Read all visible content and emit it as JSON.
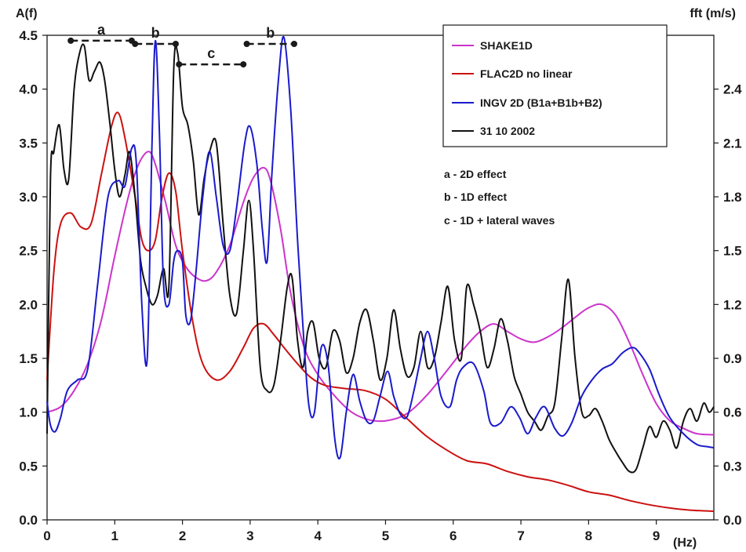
{
  "chart_data": {
    "type": "line",
    "xlabel": "(Hz)",
    "ylabel_left": "A(f)",
    "ylabel_right": "fft (m/s)",
    "xlim": [
      0,
      9.85
    ],
    "ylim_left": [
      0,
      4.5
    ],
    "ylim_right": [
      0,
      2.7
    ],
    "x_ticks": [
      "0",
      "1",
      "2",
      "3",
      "4",
      "5",
      "6",
      "7",
      "8",
      "9"
    ],
    "y_left_ticks": [
      "0.0",
      "0.5",
      "1.0",
      "1.5",
      "2.0",
      "2.5",
      "3.0",
      "3.5",
      "4.0",
      "4.5"
    ],
    "y_right_ticks": [
      "0.0",
      "0.3",
      "0.6",
      "0.9",
      "1.2",
      "1.5",
      "1.8",
      "2.1",
      "2.4"
    ],
    "legend_position": "top-right",
    "series": [
      {
        "name": "SHAKE1D",
        "color": "#cc33cc",
        "axis": "left",
        "x": [
          0,
          0.2,
          0.4,
          0.6,
          0.8,
          1.0,
          1.2,
          1.35,
          1.5,
          1.6,
          1.75,
          1.9,
          2.05,
          2.2,
          2.35,
          2.5,
          2.7,
          2.9,
          3.05,
          3.2,
          3.3,
          3.45,
          3.6,
          3.8,
          4.0,
          4.25,
          4.5,
          4.75,
          5.0,
          5.3,
          5.6,
          5.9,
          6.2,
          6.4,
          6.6,
          6.8,
          7.0,
          7.2,
          7.4,
          7.6,
          7.8,
          8.0,
          8.2,
          8.4,
          8.6,
          8.8,
          9.0,
          9.2,
          9.4,
          9.6,
          9.85
        ],
        "y": [
          1.0,
          1.05,
          1.2,
          1.45,
          1.85,
          2.45,
          3.0,
          3.3,
          3.42,
          3.3,
          2.95,
          2.55,
          2.35,
          2.25,
          2.22,
          2.3,
          2.55,
          2.95,
          3.18,
          3.27,
          3.15,
          2.7,
          2.1,
          1.6,
          1.35,
          1.15,
          1.0,
          0.93,
          0.92,
          0.98,
          1.15,
          1.38,
          1.62,
          1.75,
          1.82,
          1.75,
          1.68,
          1.65,
          1.7,
          1.78,
          1.88,
          1.97,
          2.0,
          1.9,
          1.65,
          1.35,
          1.08,
          0.92,
          0.85,
          0.8,
          0.79
        ]
      },
      {
        "name": "FLAC2D no linear",
        "color": "#cc1111",
        "axis": "left",
        "x": [
          0,
          0.1,
          0.2,
          0.35,
          0.5,
          0.65,
          0.8,
          0.95,
          1.05,
          1.15,
          1.3,
          1.4,
          1.5,
          1.6,
          1.7,
          1.8,
          1.9,
          2.0,
          2.15,
          2.3,
          2.5,
          2.7,
          2.9,
          3.05,
          3.2,
          3.35,
          3.5,
          3.7,
          3.9,
          4.1,
          4.4,
          4.7,
          5.0,
          5.3,
          5.6,
          5.9,
          6.2,
          6.5,
          6.8,
          7.1,
          7.4,
          7.7,
          8.0,
          8.3,
          8.6,
          8.9,
          9.2,
          9.5,
          9.85
        ],
        "y": [
          1.3,
          2.3,
          2.75,
          2.85,
          2.72,
          2.75,
          3.2,
          3.65,
          3.78,
          3.55,
          3.0,
          2.6,
          2.5,
          2.6,
          3.0,
          3.22,
          3.05,
          2.5,
          1.85,
          1.45,
          1.3,
          1.38,
          1.6,
          1.78,
          1.82,
          1.72,
          1.6,
          1.45,
          1.32,
          1.25,
          1.22,
          1.2,
          1.12,
          0.95,
          0.78,
          0.65,
          0.55,
          0.52,
          0.45,
          0.4,
          0.37,
          0.32,
          0.26,
          0.23,
          0.18,
          0.14,
          0.11,
          0.09,
          0.08
        ]
      },
      {
        "name": "INGV 2D (B1a+B1b+B2)",
        "color": "#1a1acc",
        "axis": "left",
        "x": [
          0,
          0.05,
          0.12,
          0.2,
          0.3,
          0.45,
          0.6,
          0.75,
          0.9,
          1.05,
          1.15,
          1.25,
          1.32,
          1.4,
          1.48,
          1.55,
          1.6,
          1.66,
          1.72,
          1.8,
          1.87,
          1.93,
          2.0,
          2.05,
          2.12,
          2.2,
          2.3,
          2.4,
          2.5,
          2.6,
          2.7,
          2.8,
          2.92,
          3.0,
          3.1,
          3.18,
          3.25,
          3.32,
          3.42,
          3.5,
          3.6,
          3.7,
          3.8,
          3.87,
          3.95,
          4.05,
          4.15,
          4.25,
          4.33,
          4.42,
          4.52,
          4.62,
          4.72,
          4.82,
          4.92,
          5.03,
          5.12,
          5.22,
          5.32,
          5.42,
          5.52,
          5.62,
          5.72,
          5.82,
          5.95,
          6.05,
          6.15,
          6.3,
          6.45,
          6.55,
          6.7,
          6.85,
          6.98,
          7.1,
          7.22,
          7.35,
          7.5,
          7.62,
          7.75,
          7.9,
          8.05,
          8.2,
          8.35,
          8.5,
          8.65,
          8.75,
          8.9,
          9.05,
          9.2,
          9.4,
          9.6,
          9.75,
          9.85
        ],
        "y": [
          1.1,
          0.88,
          0.82,
          0.95,
          1.2,
          1.3,
          1.4,
          2.2,
          3.0,
          3.15,
          3.1,
          3.45,
          3.3,
          2.0,
          1.5,
          3.5,
          4.45,
          3.6,
          2.2,
          2.0,
          2.4,
          2.5,
          2.4,
          1.9,
          1.85,
          2.3,
          3.0,
          3.42,
          3.0,
          2.55,
          2.5,
          2.9,
          3.5,
          3.65,
          3.3,
          2.7,
          2.4,
          3.2,
          4.1,
          4.48,
          3.8,
          2.6,
          1.6,
          1.05,
          1.0,
          1.6,
          1.45,
          0.75,
          0.58,
          1.0,
          1.35,
          1.1,
          0.92,
          0.92,
          1.15,
          1.38,
          1.15,
          0.98,
          0.96,
          1.2,
          1.5,
          1.75,
          1.5,
          1.15,
          1.05,
          1.3,
          1.42,
          1.45,
          1.2,
          0.9,
          0.9,
          1.05,
          0.95,
          0.8,
          0.95,
          1.05,
          0.85,
          0.78,
          0.9,
          1.15,
          1.3,
          1.4,
          1.45,
          1.55,
          1.6,
          1.55,
          1.4,
          1.15,
          0.95,
          0.8,
          0.7,
          0.68,
          0.67
        ]
      },
      {
        "name": "31 10 2002",
        "color": "#111111",
        "axis": "right",
        "x": [
          0,
          0.05,
          0.1,
          0.18,
          0.25,
          0.32,
          0.4,
          0.48,
          0.55,
          0.62,
          0.7,
          0.78,
          0.85,
          0.93,
          1.0,
          1.07,
          1.15,
          1.22,
          1.3,
          1.38,
          1.46,
          1.55,
          1.63,
          1.72,
          1.8,
          1.87,
          1.93,
          2.0,
          2.08,
          2.16,
          2.24,
          2.32,
          2.4,
          2.5,
          2.6,
          2.7,
          2.8,
          2.9,
          2.98,
          3.05,
          3.15,
          3.25,
          3.35,
          3.45,
          3.55,
          3.62,
          3.7,
          3.78,
          3.85,
          3.93,
          4.02,
          4.12,
          4.22,
          4.32,
          4.42,
          4.52,
          4.62,
          4.72,
          4.82,
          4.92,
          5.02,
          5.12,
          5.22,
          5.32,
          5.42,
          5.52,
          5.62,
          5.72,
          5.82,
          5.92,
          6.02,
          6.12,
          6.2,
          6.3,
          6.4,
          6.5,
          6.6,
          6.7,
          6.8,
          6.9,
          7.0,
          7.1,
          7.2,
          7.3,
          7.4,
          7.5,
          7.6,
          7.7,
          7.8,
          7.9,
          8.0,
          8.1,
          8.2,
          8.3,
          8.4,
          8.5,
          8.6,
          8.7,
          8.8,
          8.9,
          9.0,
          9.1,
          9.2,
          9.3,
          9.4,
          9.5,
          9.6,
          9.7,
          9.78,
          9.85
        ],
        "y": [
          0.48,
          1.9,
          2.05,
          2.2,
          1.95,
          1.9,
          2.4,
          2.6,
          2.64,
          2.45,
          2.5,
          2.55,
          2.45,
          2.2,
          1.95,
          1.8,
          1.92,
          2.05,
          1.8,
          1.45,
          1.3,
          1.2,
          1.25,
          1.4,
          1.3,
          2.5,
          2.6,
          2.3,
          2.2,
          2.0,
          1.7,
          1.9,
          2.05,
          2.1,
          1.65,
          1.25,
          1.15,
          1.5,
          1.78,
          1.5,
          0.85,
          0.72,
          0.75,
          1.0,
          1.3,
          1.35,
          1.0,
          0.85,
          1.05,
          1.1,
          0.9,
          0.85,
          1.05,
          1.0,
          0.82,
          0.9,
          1.1,
          1.17,
          1.0,
          0.78,
          0.9,
          1.17,
          0.95,
          0.8,
          0.85,
          1.05,
          0.85,
          0.9,
          1.1,
          1.3,
          1.0,
          0.9,
          1.3,
          1.2,
          1.05,
          0.85,
          0.95,
          1.12,
          1.0,
          0.8,
          0.7,
          0.6,
          0.55,
          0.5,
          0.58,
          0.65,
          1.0,
          1.34,
          0.9,
          0.6,
          0.58,
          0.62,
          0.55,
          0.45,
          0.38,
          0.32,
          0.27,
          0.28,
          0.4,
          0.52,
          0.46,
          0.55,
          0.5,
          0.4,
          0.55,
          0.62,
          0.55,
          0.65,
          0.6,
          0.63
        ]
      }
    ],
    "annotations": {
      "notes": [
        "a - 2D effect",
        "b - 1D effect",
        "c - 1D + lateral waves"
      ],
      "ranges": [
        {
          "label": "a",
          "x_start": 0.35,
          "x_end": 1.25,
          "y": 4.45
        },
        {
          "label": "b",
          "x_start": 1.3,
          "x_end": 1.9,
          "y": 4.42
        },
        {
          "label": "c",
          "x_start": 1.95,
          "x_end": 2.9,
          "y": 4.23
        },
        {
          "label": "b",
          "x_start": 2.95,
          "x_end": 3.65,
          "y": 4.42
        }
      ]
    }
  }
}
